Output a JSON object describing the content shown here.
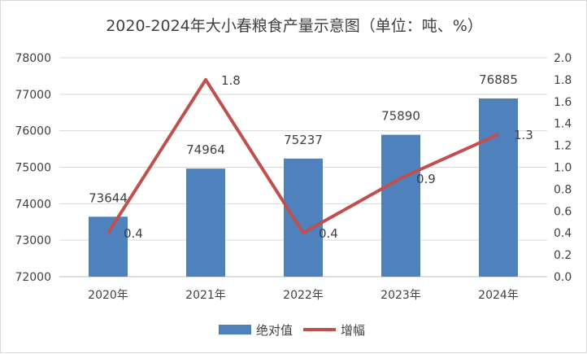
{
  "chart_data": {
    "type": "bar+line",
    "title": "2020-2024年大小春粮食产量示意图（单位：吨、%）",
    "categories": [
      "2020年",
      "2021年",
      "2022年",
      "2023年",
      "2024年"
    ],
    "series": [
      {
        "name": "绝对值",
        "type": "bar",
        "axis": "left",
        "values": [
          73644,
          74964,
          75237,
          75890,
          76885
        ],
        "color": "#4f81bd"
      },
      {
        "name": "增幅",
        "type": "line",
        "axis": "right",
        "values": [
          0.4,
          1.8,
          0.4,
          0.9,
          1.3
        ],
        "color": "#c0504d"
      }
    ],
    "y_left": {
      "min": 72000,
      "max": 78000,
      "step": 1000,
      "ticks": [
        "72000",
        "73000",
        "74000",
        "75000",
        "76000",
        "77000",
        "78000"
      ]
    },
    "y_right": {
      "min": 0,
      "max": 2.0,
      "step": 0.2,
      "ticks": [
        "0.0",
        "0.2",
        "0.4",
        "0.6",
        "0.8",
        "1.0",
        "1.2",
        "1.4",
        "1.6",
        "1.8",
        "2.0"
      ]
    },
    "grid": true,
    "legend": "bottom"
  }
}
